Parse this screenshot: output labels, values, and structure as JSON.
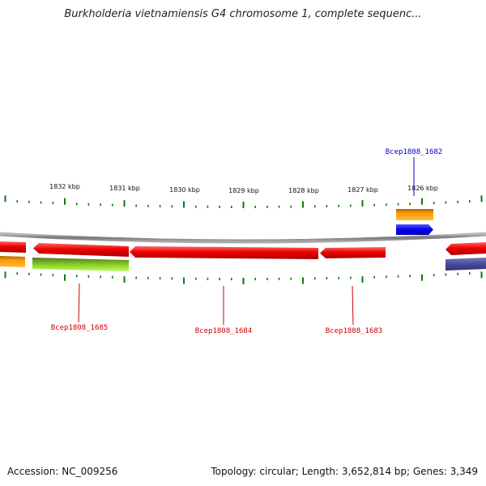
{
  "title": "Burkholderia vietnamiensis G4 chromosome 1, complete sequenc...",
  "footer": {
    "accession": "Accession: NC_009256",
    "summary": "Topology: circular; Length: 3,652,814 bp; Genes: 3,349"
  },
  "ruler": {
    "labels": [
      "1832 kbp",
      "1831 kbp",
      "1830 kbp",
      "1829 kbp",
      "1828 kbp",
      "1827 kbp",
      "1826 kbp"
    ]
  },
  "genes": [
    {
      "label": "Bcep1808_1682",
      "color": "#0000cc"
    },
    {
      "label": "Bcep1808_1683",
      "color": "#cc0000"
    },
    {
      "label": "Bcep1808_1684",
      "color": "#cc0000"
    },
    {
      "label": "Bcep1808_1685",
      "color": "#cc0000"
    }
  ],
  "colors": {
    "gene_red": "#ee0000",
    "gene_blue": "#0000ee",
    "gene_orange": "#ff9900",
    "gene_green": "#88cc22",
    "gene_purple": "#4a4a99",
    "tick_green": "#117711",
    "backbone": "#888888"
  }
}
